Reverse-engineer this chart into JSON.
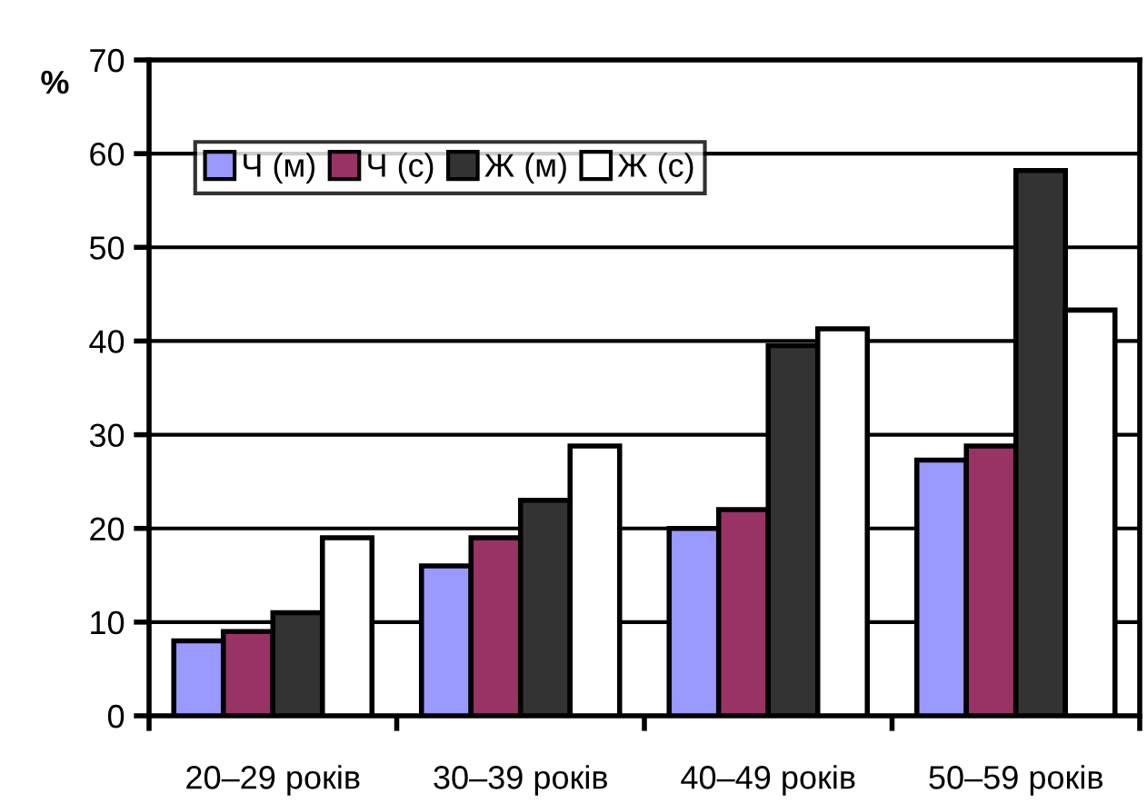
{
  "chart_data": {
    "type": "bar",
    "ylabel": "%",
    "categories": [
      "20–29 років",
      "30–39 років",
      "40–49 років",
      "50–59 років"
    ],
    "series": [
      {
        "name": "Ч (м)",
        "color": "#9999ff",
        "values": [
          8,
          16,
          20,
          27.3
        ]
      },
      {
        "name": "Ч (с)",
        "color": "#993366",
        "values": [
          9,
          19,
          22,
          28.8
        ]
      },
      {
        "name": "Ж (м)",
        "color": "#333333",
        "values": [
          11,
          23,
          39.5,
          58.2
        ]
      },
      {
        "name": "Ж (с)",
        "color": "#ffffff",
        "values": [
          19,
          28.8,
          41.3,
          43.3
        ]
      }
    ],
    "ylim": [
      0,
      70
    ],
    "yticks": [
      0,
      10,
      20,
      30,
      40,
      50,
      60,
      70
    ],
    "grid": "y",
    "legend": "top left"
  }
}
